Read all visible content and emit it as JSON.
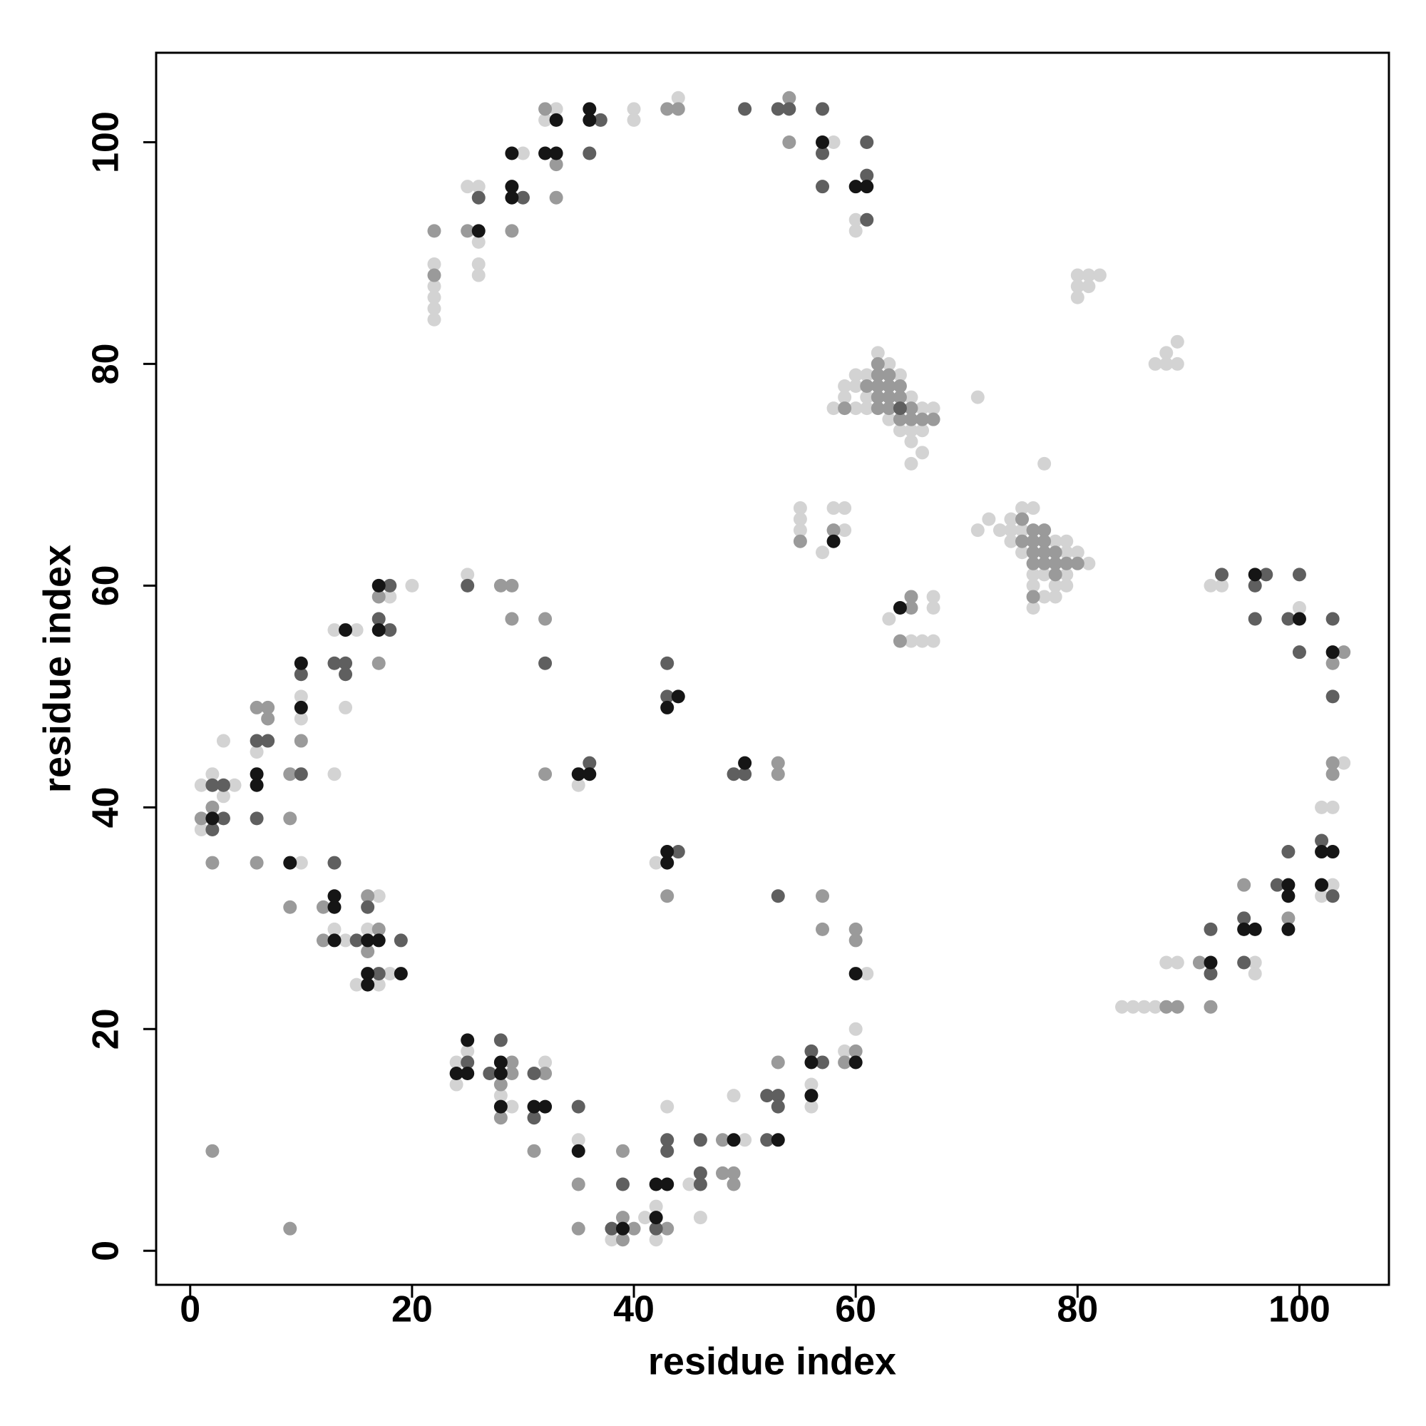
{
  "chart_data": {
    "type": "scatter",
    "x_label": "residue index",
    "y_label": "residue index",
    "xlim": [
      -3.07,
      108.07
    ],
    "ylim": [
      -3.07,
      108.07
    ],
    "xticks": [
      0,
      20,
      40,
      60,
      80,
      100
    ],
    "yticks": [
      0,
      20,
      40,
      60,
      80,
      100
    ],
    "series": [
      {
        "color": "#d3d3d3",
        "x": [
          22,
          22,
          22,
          22,
          22,
          25,
          26,
          26,
          26,
          26,
          30,
          32,
          33,
          40,
          40,
          44,
          58,
          60,
          60,
          58,
          59,
          59,
          60,
          60,
          60,
          61,
          61,
          61,
          62,
          63,
          63,
          64,
          64,
          65,
          65,
          65,
          65,
          66,
          66,
          66,
          67,
          71,
          80,
          80,
          80,
          81,
          81,
          82,
          87,
          88,
          88,
          89,
          89,
          55,
          55,
          55,
          57,
          58,
          59,
          59,
          63,
          65,
          66,
          67,
          67,
          67,
          71,
          72,
          73,
          74,
          74,
          74,
          75,
          75,
          75,
          76,
          76,
          76,
          76,
          77,
          77,
          77,
          78,
          78,
          78,
          79,
          79,
          79,
          79,
          80,
          81,
          92,
          93,
          100,
          103,
          103,
          104,
          102,
          102,
          96,
          96,
          88,
          89,
          84,
          85,
          86,
          87,
          1,
          1,
          2,
          3,
          3,
          4,
          6,
          10,
          10,
          10,
          13,
          13,
          13,
          14,
          14,
          15,
          15,
          16,
          17,
          17,
          18,
          18,
          20,
          25,
          35,
          42,
          61,
          24,
          24,
          25,
          28,
          29,
          32,
          35,
          38,
          41,
          42,
          42,
          43,
          45,
          46,
          49,
          50,
          56,
          56,
          59,
          60
        ],
        "values": [
          89,
          87,
          86,
          85,
          84,
          96,
          96,
          91,
          89,
          88,
          99,
          102,
          103,
          103,
          102,
          104,
          100,
          93,
          92,
          76,
          78,
          77,
          79,
          78,
          76,
          79,
          77,
          76,
          81,
          80,
          75,
          79,
          74,
          77,
          74,
          73,
          71,
          76,
          74,
          72,
          76,
          77,
          88,
          87,
          86,
          88,
          87,
          88,
          80,
          81,
          80,
          82,
          80,
          67,
          66,
          65,
          63,
          67,
          67,
          65,
          57,
          55,
          55,
          59,
          58,
          55,
          65,
          66,
          65,
          66,
          65,
          64,
          67,
          65,
          63,
          67,
          61,
          60,
          58,
          61,
          59,
          71,
          64,
          60,
          59,
          64,
          63,
          61,
          60,
          63,
          62,
          60,
          60,
          58,
          40,
          33,
          44,
          40,
          32,
          26,
          25,
          26,
          26,
          22,
          22,
          22,
          22,
          42,
          38,
          43,
          46,
          41,
          42,
          45,
          50,
          48,
          35,
          56,
          43,
          29,
          49,
          28,
          56,
          24,
          29,
          32,
          24,
          59,
          25,
          60,
          61,
          42,
          35,
          25,
          17,
          15,
          18,
          14,
          13,
          17,
          10,
          1,
          3,
          4,
          1,
          13,
          6,
          3,
          14,
          10,
          15,
          13,
          18,
          20
        ]
      },
      {
        "color": "#9a9a9a",
        "x": [
          22,
          22,
          25,
          29,
          32,
          33,
          33,
          43,
          44,
          54,
          54,
          59,
          61,
          62,
          62,
          62,
          62,
          62,
          63,
          63,
          63,
          63,
          64,
          64,
          64,
          65,
          65,
          66,
          67,
          55,
          58,
          64,
          65,
          65,
          75,
          75,
          76,
          76,
          76,
          76,
          76,
          77,
          77,
          77,
          77,
          78,
          78,
          78,
          79,
          80,
          103,
          103,
          103,
          104,
          99,
          95,
          92,
          91,
          88,
          89,
          1,
          2,
          2,
          2,
          6,
          6,
          7,
          7,
          9,
          9,
          9,
          9,
          10,
          12,
          12,
          16,
          16,
          17,
          17,
          17,
          28,
          29,
          29,
          32,
          32,
          43,
          53,
          53,
          57,
          57,
          60,
          60,
          28,
          28,
          29,
          29,
          31,
          32,
          35,
          35,
          39,
          39,
          39,
          40,
          43,
          48,
          48,
          49,
          49,
          53,
          59,
          60
        ],
        "values": [
          92,
          88,
          92,
          92,
          103,
          98,
          95,
          103,
          103,
          104,
          100,
          76,
          78,
          80,
          79,
          78,
          77,
          76,
          79,
          78,
          77,
          76,
          78,
          77,
          75,
          76,
          75,
          75,
          75,
          64,
          65,
          55,
          59,
          58,
          66,
          64,
          65,
          64,
          63,
          62,
          59,
          65,
          64,
          63,
          62,
          63,
          62,
          61,
          62,
          62,
          53,
          44,
          43,
          54,
          30,
          33,
          22,
          26,
          22,
          22,
          39,
          40,
          35,
          9,
          49,
          35,
          49,
          48,
          43,
          39,
          31,
          2,
          46,
          31,
          28,
          32,
          27,
          59,
          53,
          29,
          60,
          60,
          57,
          57,
          43,
          32,
          44,
          43,
          32,
          29,
          29,
          28,
          15,
          12,
          17,
          16,
          9,
          16,
          6,
          2,
          9,
          3,
          1,
          2,
          2,
          10,
          7,
          7,
          6,
          17,
          17,
          18
        ]
      },
      {
        "color": "#5f5f5f",
        "x": [
          26,
          30,
          36,
          37,
          50,
          53,
          54,
          57,
          57,
          57,
          61,
          61,
          61,
          64,
          93,
          96,
          96,
          97,
          99,
          100,
          100,
          103,
          103,
          103,
          102,
          99,
          98,
          95,
          95,
          92,
          92,
          2,
          2,
          3,
          3,
          6,
          6,
          7,
          10,
          10,
          13,
          13,
          14,
          14,
          15,
          16,
          17,
          17,
          18,
          18,
          19,
          25,
          32,
          36,
          43,
          43,
          44,
          49,
          50,
          53,
          25,
          27,
          28,
          31,
          31,
          35,
          38,
          39,
          42,
          43,
          43,
          46,
          46,
          46,
          52,
          52,
          53,
          53,
          56,
          57
        ],
        "values": [
          95,
          95,
          99,
          102,
          103,
          103,
          103,
          103,
          99,
          96,
          100,
          97,
          93,
          76,
          61,
          60,
          57,
          61,
          57,
          61,
          54,
          57,
          50,
          32,
          37,
          36,
          33,
          30,
          26,
          29,
          25,
          42,
          38,
          42,
          39,
          46,
          39,
          46,
          52,
          43,
          53,
          35,
          53,
          52,
          28,
          31,
          57,
          25,
          60,
          56,
          28,
          60,
          53,
          44,
          53,
          50,
          36,
          43,
          43,
          32,
          17,
          16,
          19,
          16,
          12,
          13,
          2,
          6,
          2,
          10,
          9,
          10,
          7,
          6,
          14,
          10,
          14,
          13,
          18,
          17
        ]
      },
      {
        "color": "#151515",
        "x": [
          26,
          29,
          29,
          29,
          32,
          33,
          33,
          36,
          36,
          57,
          60,
          61,
          58,
          64,
          96,
          100,
          103,
          103,
          102,
          102,
          99,
          99,
          99,
          96,
          95,
          92,
          2,
          6,
          6,
          9,
          10,
          10,
          13,
          13,
          13,
          14,
          16,
          16,
          16,
          17,
          17,
          17,
          19,
          35,
          36,
          43,
          43,
          43,
          44,
          50,
          60,
          24,
          25,
          25,
          28,
          28,
          28,
          31,
          32,
          35,
          39,
          42,
          42,
          43,
          49,
          53,
          56,
          56,
          60
        ],
        "values": [
          92,
          99,
          96,
          95,
          99,
          102,
          99,
          103,
          102,
          100,
          96,
          96,
          64,
          58,
          61,
          57,
          54,
          36,
          36,
          33,
          33,
          32,
          29,
          29,
          29,
          26,
          39,
          43,
          42,
          35,
          53,
          49,
          32,
          31,
          28,
          56,
          28,
          25,
          24,
          60,
          56,
          28,
          25,
          43,
          43,
          49,
          36,
          35,
          50,
          44,
          25,
          16,
          19,
          16,
          17,
          16,
          13,
          13,
          13,
          9,
          2,
          6,
          3,
          6,
          10,
          10,
          17,
          14,
          17
        ]
      }
    ]
  }
}
